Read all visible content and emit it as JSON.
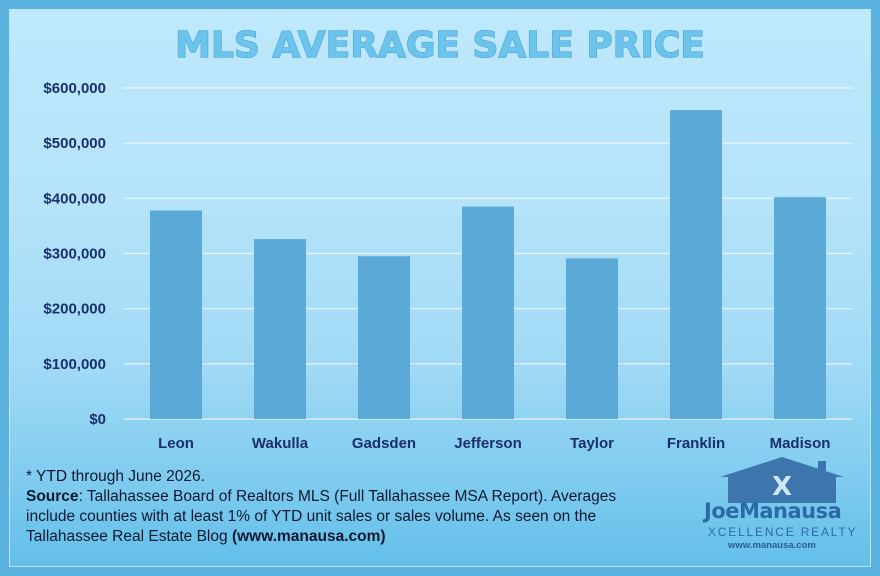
{
  "chart_data": {
    "type": "bar",
    "title": "MLS AVERAGE SALE PRICE",
    "categories": [
      "Leon",
      "Wakulla",
      "Gadsden",
      "Jefferson",
      "Taylor",
      "Franklin",
      "Madison"
    ],
    "values": [
      378000,
      326000,
      295000,
      385000,
      291000,
      560000,
      402000
    ],
    "ylim": [
      0,
      600000
    ],
    "yticks": [
      "$0",
      "$100,000",
      "$200,000",
      "$300,000",
      "$400,000",
      "$500,000",
      "$600,000"
    ],
    "xlabel": "",
    "ylabel": "",
    "grid": true,
    "colors": {
      "bar": "#5aa9d6",
      "grid": "#e8f6fd",
      "text": "#1a2f6b",
      "title": "#6cc4ec"
    }
  },
  "footnote": {
    "line1": "* YTD through June 2026.",
    "source_label": "Source",
    "source_text": ": Tallahassee Board of Realtors MLS (Full Tallahassee MSA Report). Averages include counties with at least 1% of YTD unit sales or sales volume. As seen on the Tallahassee Real Estate Blog ",
    "site": "(www.manausa.com)"
  },
  "logo": {
    "name": "JoeManausa",
    "sub": "XCELLENCE REALTY",
    "url": "www.manausa.com",
    "icon": "house-x-logo-icon"
  }
}
